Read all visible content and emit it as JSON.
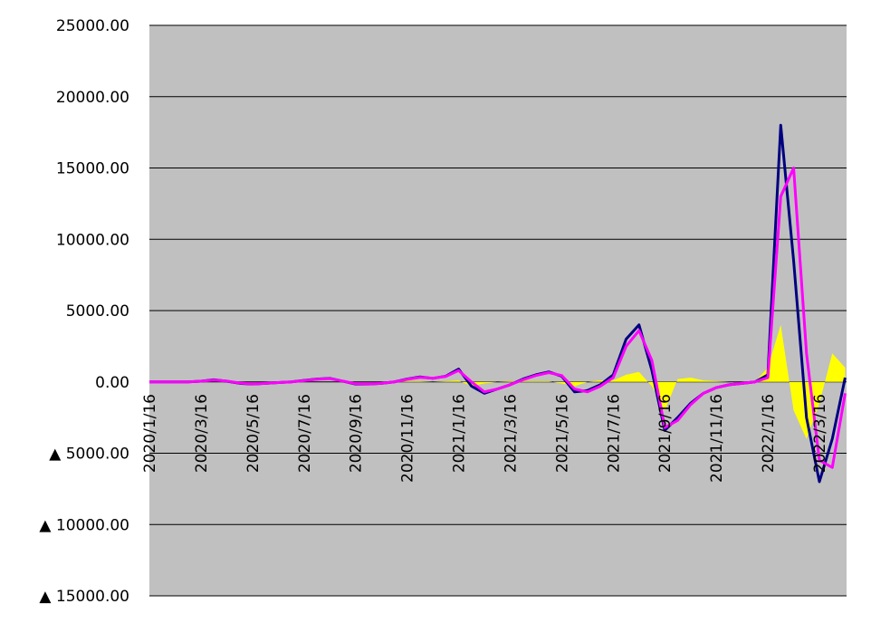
{
  "chart_data": {
    "type": "line",
    "categories": [
      "2020/1/16",
      null,
      null,
      null,
      "2020/3/16",
      null,
      null,
      null,
      "2020/5/16",
      null,
      null,
      null,
      "2020/7/16",
      null,
      null,
      null,
      "2020/9/16",
      null,
      null,
      null,
      "2020/11/16",
      null,
      null,
      null,
      "2021/1/16",
      null,
      null,
      null,
      "2021/3/16",
      null,
      null,
      null,
      "2021/5/16",
      null,
      null,
      null,
      "2021/7/16",
      null,
      null,
      null,
      "2021/9/16",
      null,
      null,
      null,
      "2021/11/16",
      null,
      null,
      null,
      "2022/1/16",
      null,
      null,
      null,
      "2022/3/16",
      null,
      null
    ],
    "series": [
      {
        "color": "#ffff00",
        "fill": true,
        "values": [
          0,
          0,
          0,
          0,
          0,
          0,
          0,
          0,
          0,
          0,
          0,
          0,
          0,
          0,
          0,
          0,
          0,
          0,
          0,
          0,
          50,
          50,
          0,
          50,
          100,
          -300,
          -100,
          0,
          50,
          50,
          50,
          50,
          -100,
          -300,
          0,
          100,
          100,
          500,
          700,
          -300,
          -2000,
          200,
          300,
          100,
          50,
          0,
          0,
          0,
          1000,
          4000,
          -2000,
          -4000,
          -1500,
          2000,
          1000
        ]
      },
      {
        "color": "#000080",
        "values": [
          0,
          0,
          0,
          0,
          50,
          150,
          50,
          -100,
          -150,
          -100,
          -50,
          0,
          100,
          200,
          250,
          50,
          -150,
          -150,
          -100,
          0,
          200,
          350,
          250,
          400,
          900,
          -300,
          -800,
          -500,
          -200,
          200,
          500,
          700,
          400,
          -700,
          -600,
          -200,
          500,
          3000,
          4000,
          800,
          -3400,
          -2500,
          -1500,
          -800,
          -400,
          -200,
          -100,
          0,
          500,
          18000,
          8500,
          -2500,
          -7000,
          -4000,
          300
        ]
      },
      {
        "color": "#ff00ff",
        "values": [
          0,
          0,
          0,
          0,
          50,
          130,
          60,
          -80,
          -140,
          -100,
          -50,
          0,
          90,
          180,
          230,
          60,
          -130,
          -140,
          -100,
          0,
          180,
          320,
          260,
          380,
          800,
          0,
          -700,
          -500,
          -200,
          150,
          450,
          650,
          450,
          -500,
          -700,
          -300,
          300,
          2500,
          3600,
          1500,
          -3200,
          -2700,
          -1600,
          -800,
          -400,
          -200,
          -100,
          0,
          300,
          13000,
          15000,
          2000,
          -5500,
          -6000,
          -800
        ]
      }
    ],
    "ylim": [
      -15000,
      25000
    ],
    "yticks": [
      {
        "value": -15000,
        "label": "▲ 15000.00"
      },
      {
        "value": -10000,
        "label": "▲ 10000.00"
      },
      {
        "value": -5000,
        "label": "▲ 5000.00"
      },
      {
        "value": 0,
        "label": "0.00"
      },
      {
        "value": 5000,
        "label": "5000.00"
      },
      {
        "value": 10000,
        "label": "10000.00"
      },
      {
        "value": 15000,
        "label": "15000.00"
      },
      {
        "value": 20000,
        "label": "20000.00"
      },
      {
        "value": 25000,
        "label": "25000.00"
      }
    ],
    "grid": true
  }
}
